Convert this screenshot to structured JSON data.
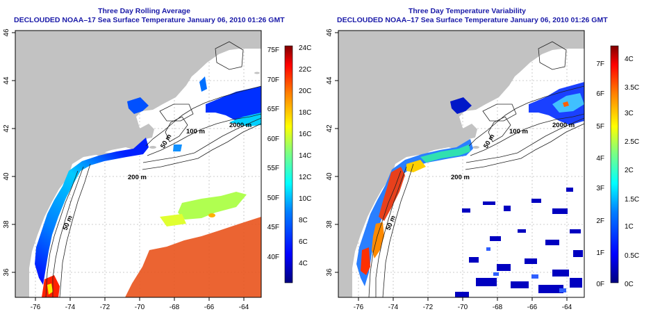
{
  "panels": [
    {
      "title": "Three Day Rolling Average",
      "subtitle": "DECLOUDED NOAA–17 Sea Surface Temperature January 06, 2010 01:26 GMT",
      "contours": [
        "100 m",
        "50 m",
        "2000 m",
        "200 m",
        "50 m"
      ],
      "colorbar_f": [
        "75F",
        "70F",
        "65F",
        "60F",
        "55F",
        "50F",
        "45F",
        "40F"
      ],
      "colorbar_c": [
        "24C",
        "22C",
        "20C",
        "18C",
        "16C",
        "14C",
        "12C",
        "10C",
        "8C",
        "6C",
        "4C"
      ]
    },
    {
      "title": "Three Day Temperature Variability",
      "subtitle": "DECLOUDED NOAA–17 Sea Surface Temperature January 06, 2010 01:26 GMT",
      "contours": [
        "100 m",
        "50 m",
        "2000 m",
        "200 m",
        "50 m"
      ],
      "colorbar_f": [
        "7F",
        "6F",
        "5F",
        "4F",
        "3F",
        "2F",
        "1F",
        "0F"
      ],
      "colorbar_c": [
        "4C",
        "3.5C",
        "3C",
        "2.5C",
        "2C",
        "1.5C",
        "1C",
        "0.5C",
        "0C"
      ]
    }
  ],
  "axes": {
    "x_ticks": [
      "-76",
      "-74",
      "-72",
      "-70",
      "-68",
      "-66",
      "-64"
    ],
    "y_ticks": [
      "46",
      "44",
      "42",
      "40",
      "38",
      "36"
    ]
  },
  "colors": {
    "land": "#c2c2c2",
    "ocean": "#ffffff",
    "title": "#1a1aa8",
    "colormap": [
      "#00007f",
      "#0000ff",
      "#007fff",
      "#00ffff",
      "#7fff7f",
      "#ffff00",
      "#ff7f00",
      "#ff0000",
      "#7f0000"
    ]
  }
}
